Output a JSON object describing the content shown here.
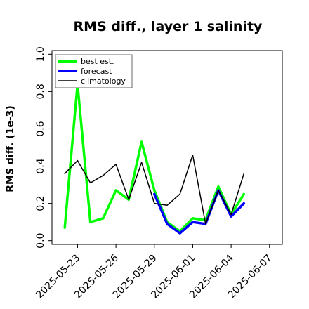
{
  "chart_data": {
    "type": "line",
    "title": "RMS diff., layer 1 salinity",
    "xlabel": "",
    "ylabel": "RMS diff. (1e-3)",
    "x": [
      "2025-05-22",
      "2025-05-23",
      "2025-05-24",
      "2025-05-25",
      "2025-05-26",
      "2025-05-27",
      "2025-05-28",
      "2025-05-29",
      "2025-05-30",
      "2025-05-31",
      "2025-06-01",
      "2025-06-02",
      "2025-06-03",
      "2025-06-04",
      "2025-06-05"
    ],
    "series": [
      {
        "name": "best est.",
        "color": "#00ff00",
        "values": [
          0.07,
          0.84,
          0.1,
          0.12,
          0.27,
          0.22,
          0.53,
          0.27,
          0.1,
          0.05,
          0.12,
          0.11,
          0.29,
          0.14,
          0.25
        ]
      },
      {
        "name": "forecast",
        "color": "#0000ff",
        "values": [
          null,
          null,
          null,
          null,
          null,
          null,
          null,
          0.25,
          0.09,
          0.04,
          0.1,
          0.09,
          0.27,
          0.13,
          0.2
        ]
      },
      {
        "name": "climatology",
        "color": "#000000",
        "values": [
          0.36,
          0.43,
          0.31,
          0.35,
          0.41,
          0.22,
          0.42,
          0.2,
          0.19,
          0.25,
          0.46,
          0.09,
          0.27,
          0.14,
          0.36
        ]
      }
    ],
    "xticks": [
      "2025-05-23",
      "2025-05-26",
      "2025-05-29",
      "2025-06-01",
      "2025-06-04",
      "2025-06-07"
    ],
    "xtick_colors": [
      "#000000",
      "#000000",
      "#008000",
      "#000000",
      "#000000",
      "#000000"
    ],
    "yticks": [
      "0.0",
      "0.2",
      "0.4",
      "0.6",
      "0.8",
      "1.0"
    ],
    "ylim": [
      -0.02,
      1.02
    ],
    "xlim": [
      "2025-05-21",
      "2025-06-08"
    ],
    "grid": false,
    "legend_position": "top-left"
  }
}
